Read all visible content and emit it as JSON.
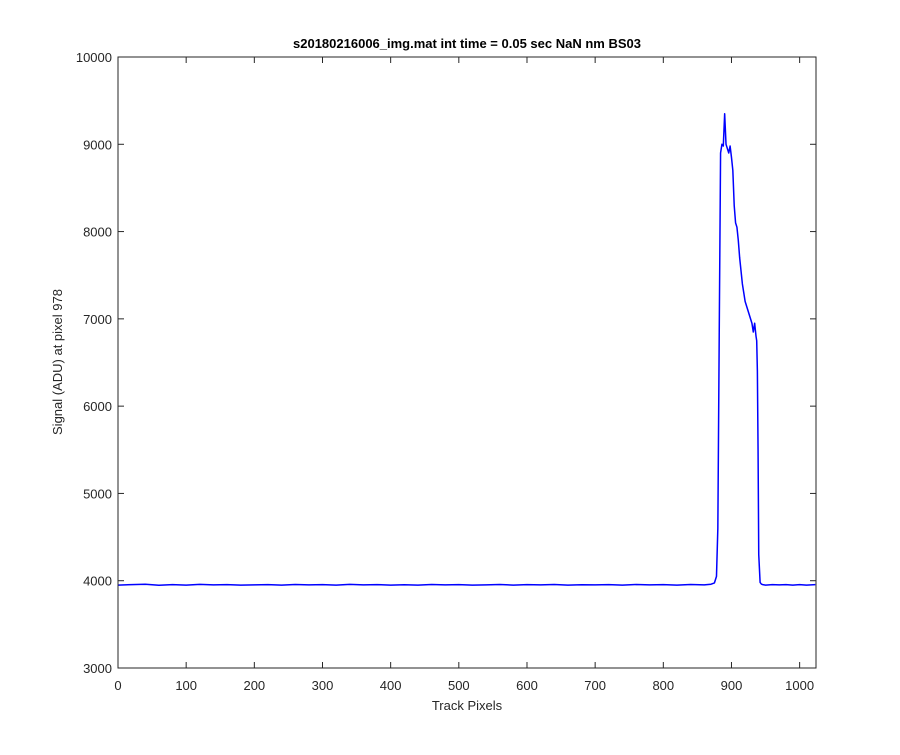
{
  "chart_data": {
    "type": "line",
    "title": "s20180216006_img.mat int time = 0.05 sec  NaN nm BS03",
    "xlabel": "Track Pixels",
    "ylabel": "Signal (ADU) at pixel 978",
    "xlim": [
      0,
      1024
    ],
    "ylim": [
      3000,
      10000
    ],
    "xticks": [
      0,
      100,
      200,
      300,
      400,
      500,
      600,
      700,
      800,
      900,
      1000
    ],
    "yticks": [
      3000,
      4000,
      5000,
      6000,
      7000,
      8000,
      9000,
      10000
    ],
    "grid": false,
    "line_color": "#0000ff",
    "series": [
      {
        "x": [
          0,
          20,
          40,
          60,
          80,
          100,
          120,
          140,
          160,
          180,
          200,
          220,
          240,
          260,
          280,
          300,
          320,
          340,
          360,
          380,
          400,
          420,
          440,
          460,
          480,
          500,
          520,
          540,
          560,
          580,
          600,
          620,
          640,
          660,
          680,
          700,
          720,
          740,
          760,
          780,
          800,
          820,
          840,
          860,
          870,
          875,
          878,
          880,
          882,
          884,
          886,
          888,
          890,
          892,
          894,
          896,
          898,
          900,
          902,
          904,
          906,
          908,
          910,
          912,
          914,
          916,
          918,
          920,
          922,
          924,
          926,
          928,
          930,
          932,
          934,
          936,
          937,
          938,
          939,
          940,
          942,
          944,
          946,
          950,
          960,
          970,
          980,
          990,
          1000,
          1010,
          1023
        ],
        "values": [
          3950,
          3955,
          3960,
          3948,
          3955,
          3950,
          3958,
          3952,
          3955,
          3950,
          3953,
          3955,
          3950,
          3956,
          3952,
          3955,
          3950,
          3958,
          3952,
          3955,
          3950,
          3954,
          3950,
          3956,
          3952,
          3955,
          3950,
          3953,
          3956,
          3950,
          3955,
          3952,
          3957,
          3950,
          3954,
          3952,
          3955,
          3950,
          3956,
          3952,
          3955,
          3950,
          3957,
          3952,
          3960,
          3975,
          4050,
          4600,
          6800,
          8900,
          9000,
          8980,
          9350,
          9000,
          8950,
          8900,
          8980,
          8850,
          8700,
          8300,
          8100,
          8050,
          7900,
          7700,
          7550,
          7400,
          7300,
          7200,
          7150,
          7100,
          7050,
          7000,
          6950,
          6850,
          6950,
          6800,
          6750,
          6400,
          5500,
          4300,
          3980,
          3960,
          3955,
          3950,
          3955,
          3952,
          3955,
          3950,
          3955,
          3950,
          3955
        ]
      }
    ]
  }
}
